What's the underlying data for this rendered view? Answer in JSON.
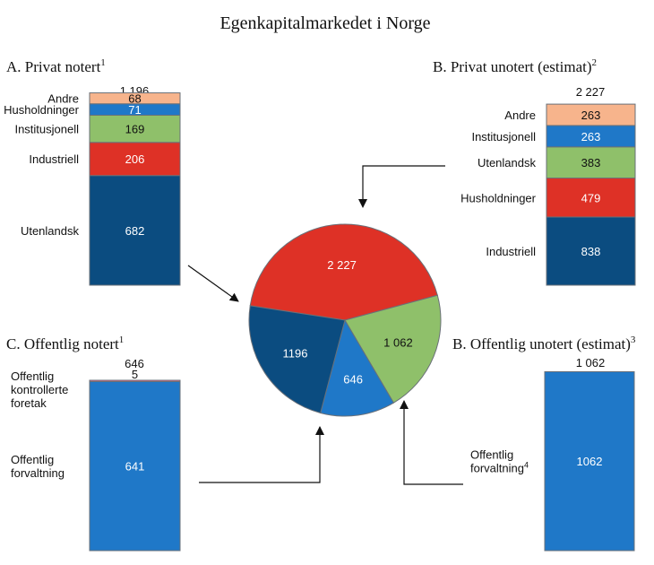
{
  "title": "Egenkapitalmarkedet i Norge",
  "colors": {
    "orange": "#F7B48C",
    "blue": "#1F78C8",
    "green": "#8FC06A",
    "red": "#DE3126",
    "navy": "#0B4C80",
    "pink": "#E46A8A",
    "border": "#6A7078",
    "arrow": "#111111"
  },
  "chart_data": [
    {
      "id": "A",
      "type": "bar",
      "stacked": true,
      "title": "A.  Privat notert",
      "footnote": "1",
      "total_label": "1 196",
      "total": 1196,
      "series": [
        {
          "name": "Utenlandsk",
          "value": 682,
          "label": "682",
          "color": "navy"
        },
        {
          "name": "Industriell",
          "value": 206,
          "label": "206",
          "color": "red"
        },
        {
          "name": "Institusjonell",
          "value": 169,
          "label": "169",
          "color": "green"
        },
        {
          "name": "Husholdninger",
          "value": 71,
          "label": "71",
          "color": "blue"
        },
        {
          "name": "Andre",
          "value": 68,
          "label": "68",
          "color": "orange"
        }
      ]
    },
    {
      "id": "B1",
      "type": "bar",
      "stacked": true,
      "title": "B.  Privat unotert (estimat)",
      "footnote": "2",
      "total_label": "2 227",
      "total": 2227,
      "series": [
        {
          "name": "Industriell",
          "value": 838,
          "label": "838",
          "color": "navy"
        },
        {
          "name": "Husholdninger",
          "value": 479,
          "label": "479",
          "color": "red"
        },
        {
          "name": "Utenlandsk",
          "value": 383,
          "label": "383",
          "color": "green"
        },
        {
          "name": "Institusjonell",
          "value": 263,
          "label": "263",
          "color": "blue"
        },
        {
          "name": "Andre",
          "value": 263,
          "label": "263",
          "color": "orange"
        }
      ]
    },
    {
      "id": "C",
      "type": "bar",
      "stacked": true,
      "title": "C.  Offentlig notert",
      "footnote": "1",
      "total_label": "646",
      "total": 646,
      "series": [
        {
          "name": "Offentlig forvaltning",
          "lines": [
            "Offentlig",
            "forvaltning"
          ],
          "value": 641,
          "label": "641",
          "color": "blue"
        },
        {
          "name": "Offentlig kontrollerte foretak",
          "lines": [
            "Offentlig",
            "kontrollerte",
            "foretak"
          ],
          "value": 5,
          "label": "5",
          "color": "pink"
        }
      ]
    },
    {
      "id": "B2",
      "type": "bar",
      "stacked": true,
      "title": "B.  Offentlig unotert (estimat)",
      "footnote": "3",
      "total_label": "1 062",
      "total": 1062,
      "series": [
        {
          "name": "Offentlig forvaltning",
          "lines": [
            "Offentlig",
            "forvaltning"
          ],
          "footnote": "4",
          "value": 1062,
          "label": "1062",
          "color": "blue"
        }
      ]
    },
    {
      "id": "pie",
      "type": "pie",
      "slices": [
        {
          "name": "Privat unotert",
          "value": 2227,
          "label": "2 227",
          "color": "red"
        },
        {
          "name": "Offentlig unotert",
          "value": 1062,
          "label": "1 062",
          "color": "green"
        },
        {
          "name": "Offentlig notert",
          "value": 646,
          "label": "646",
          "color": "blue"
        },
        {
          "name": "Privat notert",
          "value": 1196,
          "label": "1196",
          "color": "navy"
        }
      ]
    }
  ]
}
